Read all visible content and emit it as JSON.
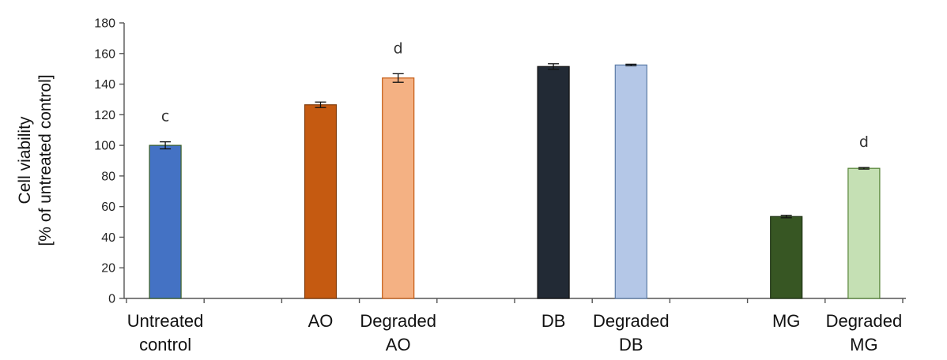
{
  "chart_data": {
    "type": "bar",
    "ylabel_lines": [
      "Cell viability",
      "[% of untreated control]"
    ],
    "ylim": [
      0,
      180
    ],
    "yticks": [
      0,
      20,
      40,
      60,
      80,
      100,
      120,
      140,
      160,
      180
    ],
    "grid": false,
    "legend": "none",
    "categories": [
      [
        "Untreated",
        "control"
      ],
      [
        "AO"
      ],
      [
        "Degraded",
        "AO"
      ],
      [
        "DB"
      ],
      [
        "Degraded",
        "DB"
      ],
      [
        "MG"
      ],
      [
        "Degraded",
        "MG"
      ]
    ],
    "bars": [
      {
        "category": "Untreated control",
        "value": 100,
        "error": 2.3,
        "color": "#4472C4",
        "border": "#3A5F26",
        "annotation": "c"
      },
      {
        "category": "AO",
        "value": 126.5,
        "error": 1.8,
        "color": "#C55A11",
        "border": "#7F3A0A",
        "annotation": ""
      },
      {
        "category": "Degraded AO",
        "value": 144,
        "error": 2.8,
        "color": "#F4B183",
        "border": "#C55A11",
        "annotation": "d"
      },
      {
        "category": "DB",
        "value": 151.5,
        "error": 1.8,
        "color": "#222A35",
        "border": "#111111",
        "annotation": ""
      },
      {
        "category": "Degraded DB",
        "value": 152.5,
        "error": 0.5,
        "color": "#B4C7E7",
        "border": "#5B7BA6",
        "annotation": ""
      },
      {
        "category": "MG",
        "value": 53.5,
        "error": 0.8,
        "color": "#375623",
        "border": "#1F3314",
        "annotation": ""
      },
      {
        "category": "Degraded MG",
        "value": 85,
        "error": 0.5,
        "color": "#C5E0B4",
        "border": "#548235",
        "annotation": "d"
      }
    ]
  }
}
